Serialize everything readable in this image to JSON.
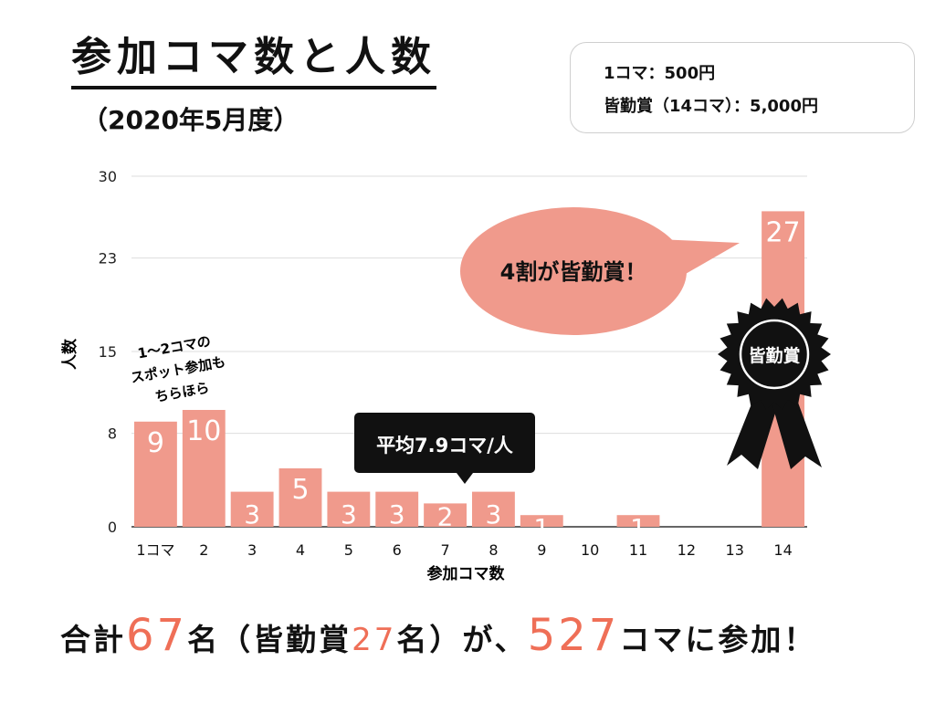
{
  "title": "参加コマ数と人数",
  "subtitle": "（2020年5月度）",
  "price_box": {
    "line1": "1コマ：500円",
    "line2": "皆勤賞（14コマ）：5,000円"
  },
  "chart_data": {
    "type": "bar",
    "categories": [
      "1コマ",
      "2",
      "3",
      "4",
      "5",
      "6",
      "7",
      "8",
      "9",
      "10",
      "11",
      "12",
      "13",
      "14"
    ],
    "values": [
      9,
      10,
      3,
      5,
      3,
      3,
      2,
      3,
      1,
      0,
      1,
      0,
      0,
      27
    ],
    "data_labels": [
      "9",
      "10",
      "3",
      "5",
      "3",
      "3",
      "2",
      "3",
      "1",
      "",
      "1",
      "",
      "",
      "27"
    ],
    "yticks": [
      0,
      8,
      15,
      23,
      30
    ],
    "ylim": [
      0,
      30
    ],
    "ylabel": "人数",
    "xlabel": "参加コマ数",
    "grid": true,
    "bar_color": "#f09a8c"
  },
  "annotations": {
    "note_lines": [
      "1～2コマの",
      "スポット参加も",
      "ちらほら"
    ],
    "average": "平均7.9コマ/人",
    "bubble": "4割が皆勤賞！",
    "badge": "皆勤賞"
  },
  "footer": {
    "t1": "合計",
    "n1": "67",
    "t2": "名（皆勤賞",
    "n2": "27",
    "t3": "名）が、",
    "n3": "527",
    "t4": "コマに参加！"
  },
  "colors": {
    "accent": "#ef6f57",
    "bar": "#f09a8c",
    "bubble": "#f09a8c",
    "badge": "#111111",
    "grid": "#dddddd"
  }
}
